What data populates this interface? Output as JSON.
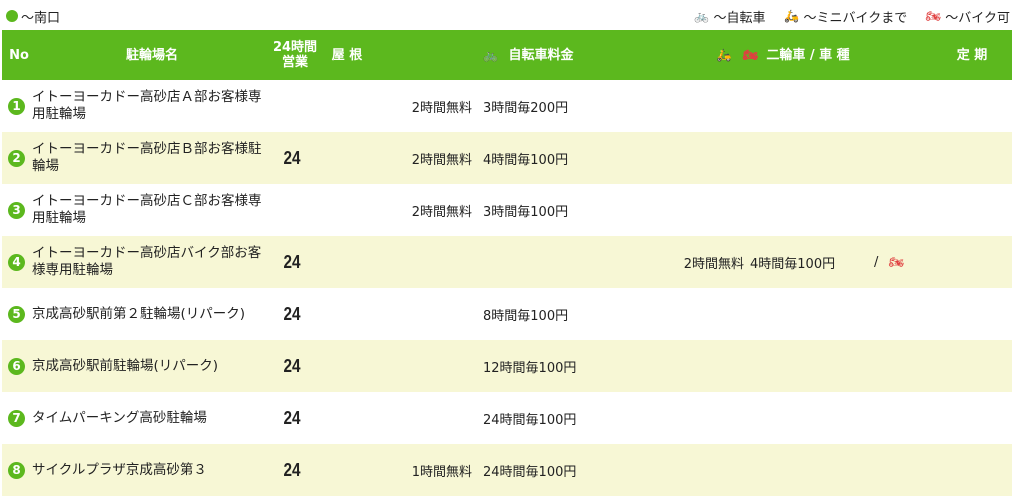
{
  "top": {
    "area_label": "～南口",
    "legend": [
      {
        "icon": "bicycle-icon",
        "label": "～自転車"
      },
      {
        "icon": "scooter-icon",
        "label": "～ミニバイクまで"
      },
      {
        "icon": "motorcycle-icon",
        "label": "～バイク可"
      }
    ]
  },
  "colors": {
    "accent": "#5cb81e",
    "row_alt": "#f7f7d5"
  },
  "header": {
    "no": "No",
    "name": "駐輪場名",
    "open24_line1": "24時間",
    "open24_line2": "営業",
    "roof": "屋 根",
    "bicycle_fee": "自転車料金",
    "motorbike": "二輪車 / 車 種",
    "pass": "定 期"
  },
  "rows": [
    {
      "no": "1",
      "name": "イトーヨーカドー高砂店Ａ部お客様専用駐輪場",
      "open24": "",
      "free": "2時間無料",
      "rate": "3時間毎200円",
      "m_free": "",
      "m_rate": "",
      "m_type": ""
    },
    {
      "no": "2",
      "name": "イトーヨーカドー高砂店Ｂ部お客様駐輪場",
      "open24": "24",
      "free": "2時間無料",
      "rate": "4時間毎100円",
      "m_free": "",
      "m_rate": "",
      "m_type": ""
    },
    {
      "no": "3",
      "name": "イトーヨーカドー高砂店Ｃ部お客様専用駐輪場",
      "open24": "",
      "free": "2時間無料",
      "rate": "3時間毎100円",
      "m_free": "",
      "m_rate": "",
      "m_type": ""
    },
    {
      "no": "4",
      "name": "イトーヨーカドー高砂店バイク部お客様専用駐輪場",
      "open24": "24",
      "free": "",
      "rate": "",
      "m_free": "2時間無料",
      "m_rate": "4時間毎100円",
      "m_type": "/"
    },
    {
      "no": "5",
      "name": "京成高砂駅前第２駐輪場(リパーク)",
      "open24": "24",
      "free": "",
      "rate": "8時間毎100円",
      "m_free": "",
      "m_rate": "",
      "m_type": ""
    },
    {
      "no": "6",
      "name": "京成高砂駅前駐輪場(リパーク)",
      "open24": "24",
      "free": "",
      "rate": "12時間毎100円",
      "m_free": "",
      "m_rate": "",
      "m_type": ""
    },
    {
      "no": "7",
      "name": "タイムパーキング高砂駐輪場",
      "open24": "24",
      "free": "",
      "rate": "24時間毎100円",
      "m_free": "",
      "m_rate": "",
      "m_type": ""
    },
    {
      "no": "8",
      "name": "サイクルプラザ京成高砂第３",
      "open24": "24",
      "free": "1時間無料",
      "rate": "24時間毎100円",
      "m_free": "",
      "m_rate": "",
      "m_type": ""
    }
  ]
}
